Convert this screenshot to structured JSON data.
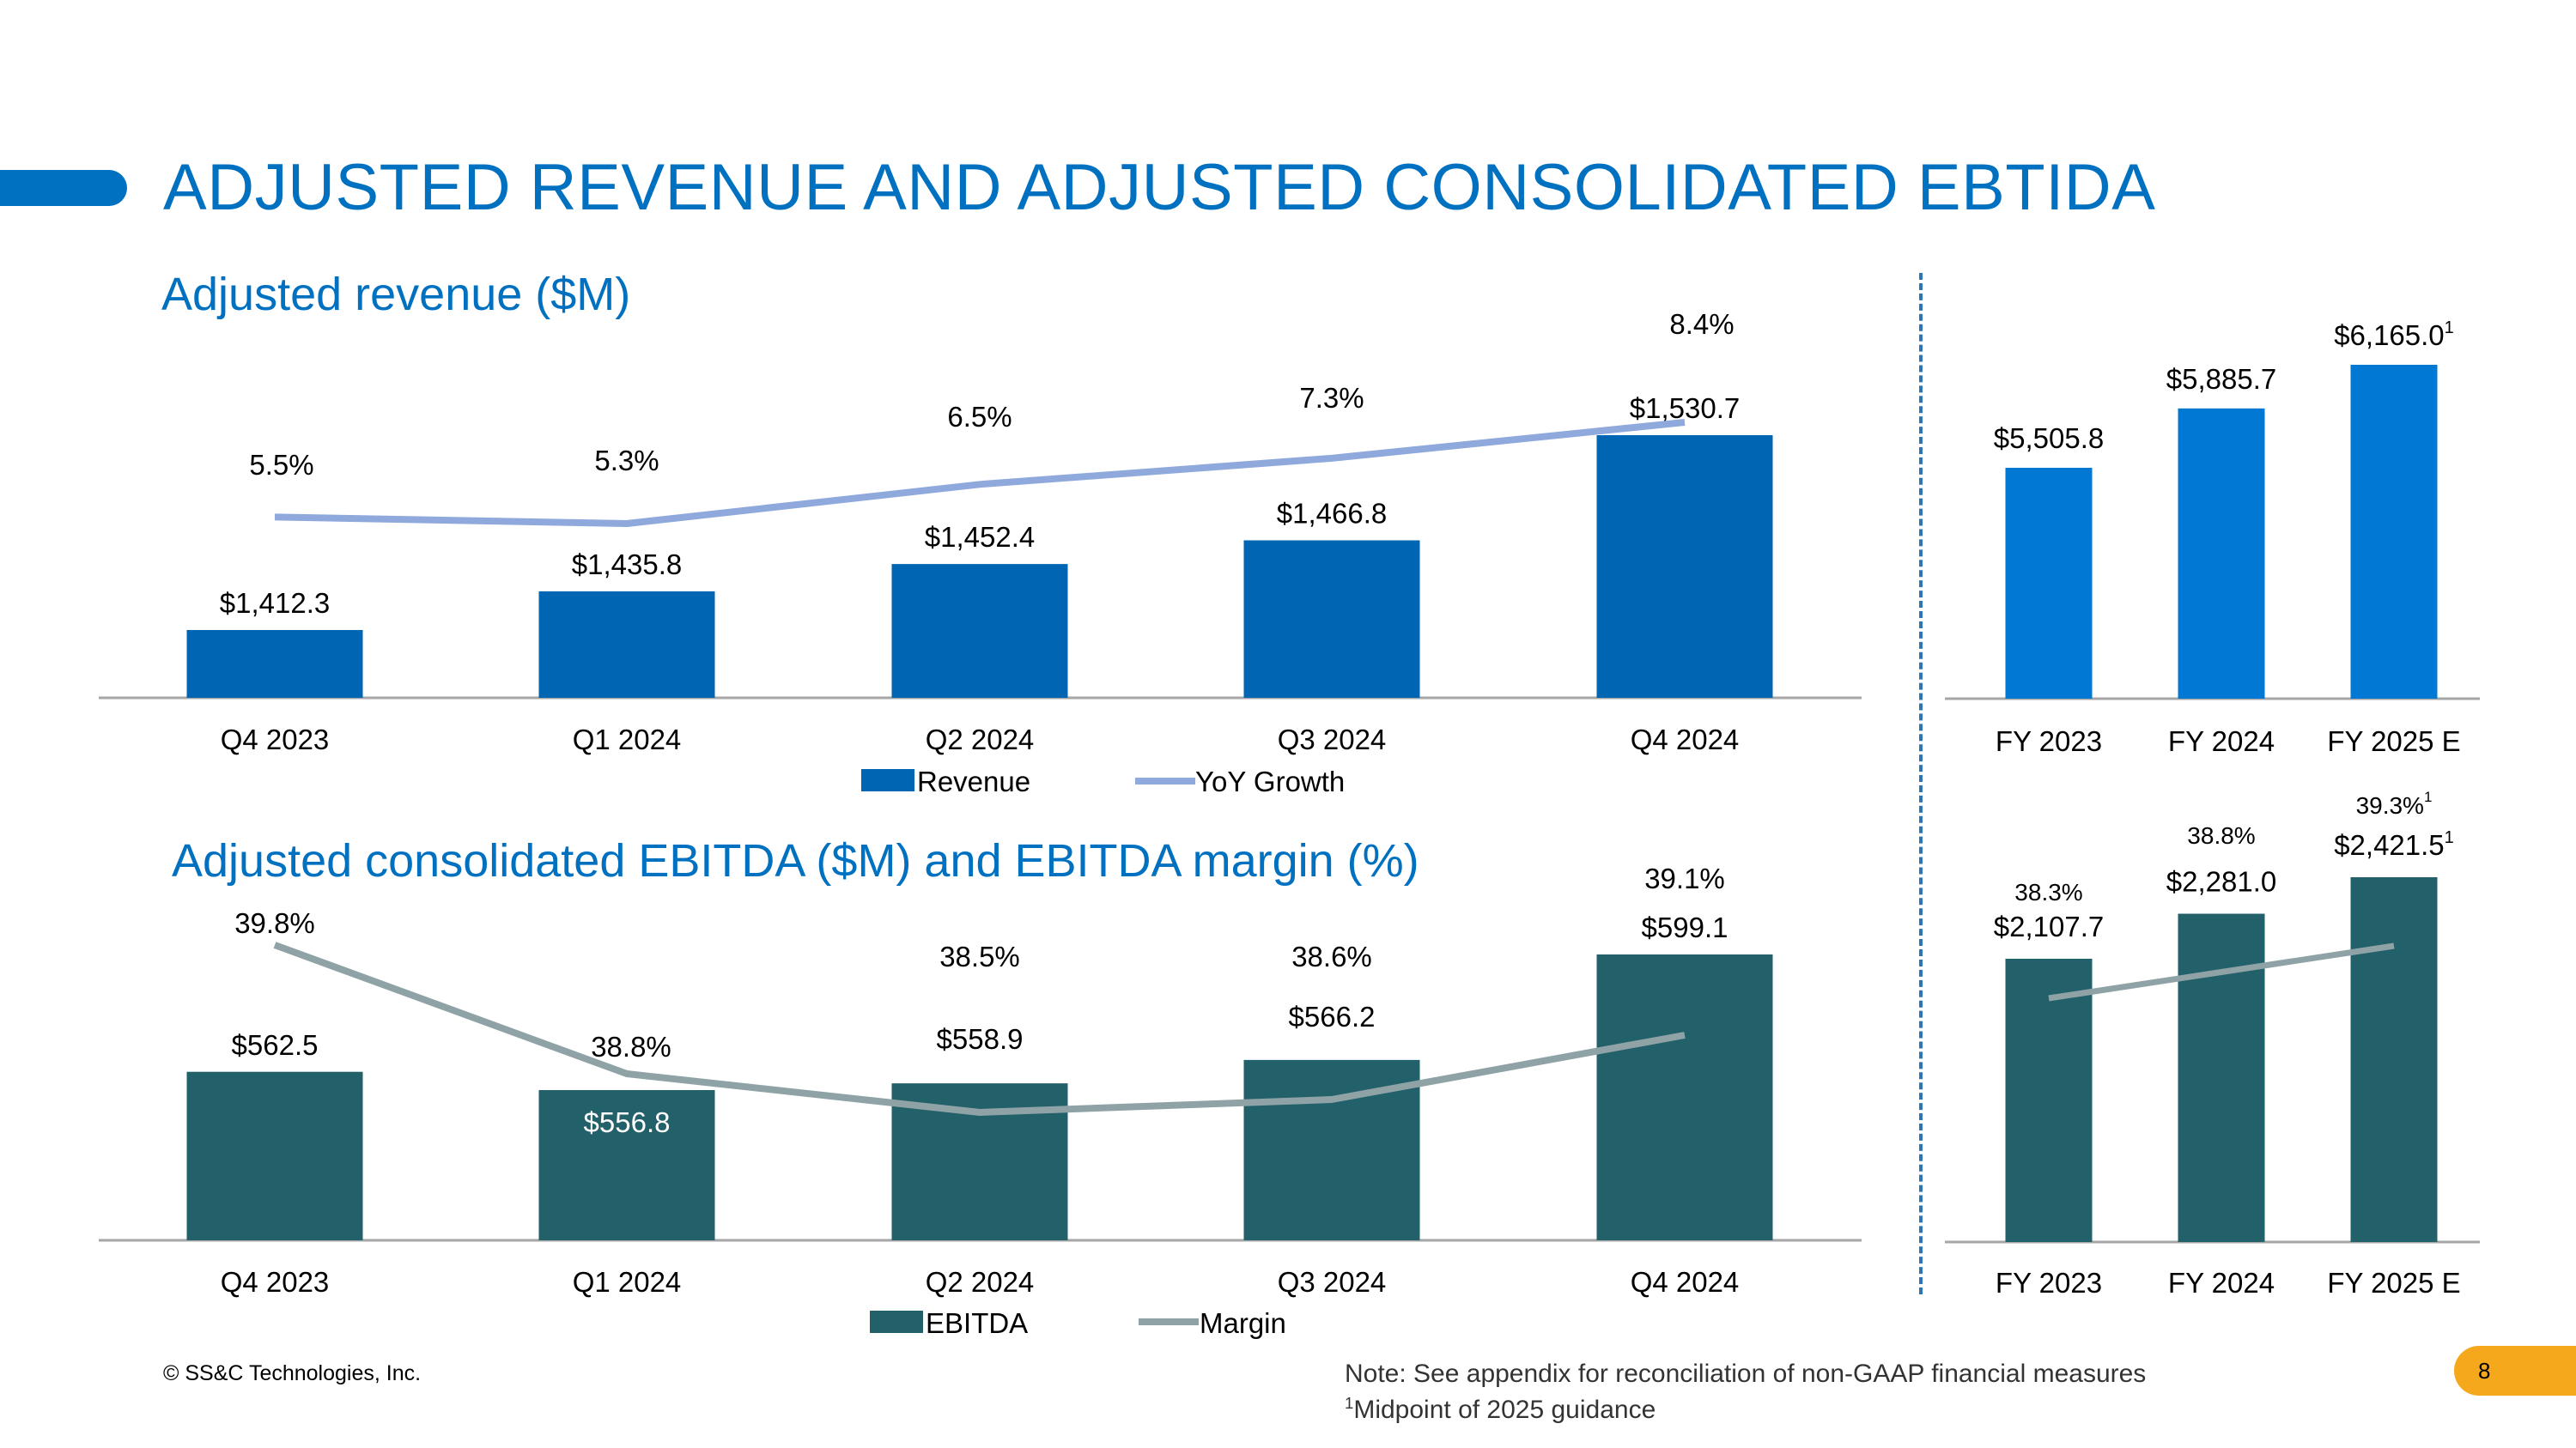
{
  "slide": {
    "title": "ADJUSTED REVENUE AND ADJUSTED CONSOLIDATED EBTIDA",
    "footer_left": "© SS&C Technologies, Inc.",
    "note_line1": "Note: See appendix for reconciliation of non-GAAP financial measures",
    "note_line2_sup": "1",
    "note_line2": "Midpoint of 2025 guidance",
    "page_number": "8"
  },
  "colors": {
    "title_blue": "#0070C0",
    "revenue_bar": "#0066B3",
    "revenue_annual_bar": "#0078D4",
    "growth_line": "#8FA9DC",
    "ebitda_bar": "#22606A",
    "margin_line": "#8FA3A7",
    "axis": "#A6A6A6",
    "badge": "#F5A81C"
  },
  "chart_data": [
    {
      "id": "quarterly-revenue",
      "type": "bar",
      "title": "Adjusted revenue ($M)",
      "categories": [
        "Q4 2023",
        "Q1 2024",
        "Q2 2024",
        "Q3 2024",
        "Q4 2024"
      ],
      "series": [
        {
          "name": "Revenue",
          "kind": "bar",
          "values": [
            1412.3,
            1435.8,
            1452.4,
            1466.8,
            1530.7
          ],
          "labels": [
            "$1,412.3",
            "$1,435.8",
            "$1,452.4",
            "$1,466.8",
            "$1,530.7"
          ]
        },
        {
          "name": "YoY Growth",
          "kind": "line",
          "values": [
            5.5,
            5.3,
            6.5,
            7.3,
            8.4
          ],
          "labels": [
            "5.5%",
            "5.3%",
            "6.5%",
            "7.3%",
            "8.4%"
          ]
        }
      ],
      "legend": "bottom"
    },
    {
      "id": "annual-revenue",
      "type": "bar",
      "categories": [
        "FY 2023",
        "FY 2024",
        "FY 2025 E"
      ],
      "series": [
        {
          "name": "Revenue",
          "kind": "bar",
          "values": [
            5505.8,
            5885.7,
            6165.0
          ],
          "labels": [
            "$5,505.8",
            "$5,885.7",
            "$6,165.0"
          ],
          "footnotes": [
            "",
            "",
            "1"
          ]
        }
      ]
    },
    {
      "id": "quarterly-ebitda",
      "type": "bar",
      "title": "Adjusted consolidated EBITDA ($M) and EBITDA margin (%)",
      "categories": [
        "Q4 2023",
        "Q1 2024",
        "Q2 2024",
        "Q3 2024",
        "Q4 2024"
      ],
      "series": [
        {
          "name": "EBITDA",
          "kind": "bar",
          "values": [
            562.5,
            556.8,
            558.9,
            566.2,
            599.1
          ],
          "labels": [
            "$562.5",
            "$556.8",
            "$558.9",
            "$566.2",
            "$599.1"
          ]
        },
        {
          "name": "Margin",
          "kind": "line",
          "values": [
            39.8,
            38.8,
            38.5,
            38.6,
            39.1
          ],
          "labels": [
            "39.8%",
            "38.8%",
            "38.5%",
            "38.6%",
            "39.1%"
          ]
        }
      ],
      "legend": "bottom"
    },
    {
      "id": "annual-ebitda",
      "type": "bar",
      "categories": [
        "FY 2023",
        "FY 2024",
        "FY 2025 E"
      ],
      "series": [
        {
          "name": "EBITDA",
          "kind": "bar",
          "values": [
            2107.7,
            2281.0,
            2421.5
          ],
          "labels": [
            "$2,107.7",
            "$2,281.0",
            "$2,421.5"
          ],
          "footnotes": [
            "",
            "",
            "1"
          ]
        },
        {
          "name": "Margin",
          "kind": "line",
          "values": [
            38.3,
            38.8,
            39.3
          ],
          "labels": [
            "38.3%",
            "38.8%",
            "39.3%"
          ],
          "footnotes": [
            "",
            "",
            "1"
          ]
        }
      ]
    }
  ]
}
